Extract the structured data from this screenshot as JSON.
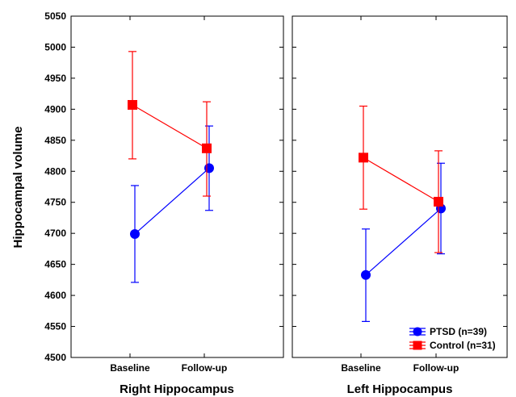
{
  "chart_data": {
    "type": "line",
    "ylabel": "Hippocampal volume",
    "ylim": [
      4500,
      5050
    ],
    "yticks": [
      4500,
      4550,
      4600,
      4650,
      4700,
      4750,
      4800,
      4850,
      4900,
      4950,
      5000,
      5050
    ],
    "categories": [
      "Baseline",
      "Follow-up"
    ],
    "grid": false,
    "legend_position": "bottom-right of right panel",
    "panels": [
      {
        "title": "Right Hippocampus",
        "series": [
          {
            "name": "PTSD (n=39)",
            "color": "#0000ff",
            "marker": "circle",
            "values": [
              4699,
              4805
            ],
            "err_low": [
              4621,
              4737
            ],
            "err_high": [
              4777,
              4873
            ]
          },
          {
            "name": "Control (n=31)",
            "color": "#ff0000",
            "marker": "square",
            "values": [
              4907,
              4837
            ],
            "err_low": [
              4820,
              4760
            ],
            "err_high": [
              4993,
              4912
            ]
          }
        ]
      },
      {
        "title": "Left Hippocampus",
        "series": [
          {
            "name": "PTSD (n=39)",
            "color": "#0000ff",
            "marker": "circle",
            "values": [
              4633,
              4740
            ],
            "err_low": [
              4558,
              4667
            ],
            "err_high": [
              4707,
              4813
            ]
          },
          {
            "name": "Control (n=31)",
            "color": "#ff0000",
            "marker": "square",
            "values": [
              4822,
              4751
            ],
            "err_low": [
              4739,
              4669
            ],
            "err_high": [
              4905,
              4833
            ]
          }
        ]
      }
    ],
    "legend": [
      {
        "label": "PTSD (n=39)",
        "color": "#0000ff",
        "marker": "circle"
      },
      {
        "label": "Control (n=31)",
        "color": "#ff0000",
        "marker": "square"
      }
    ]
  }
}
